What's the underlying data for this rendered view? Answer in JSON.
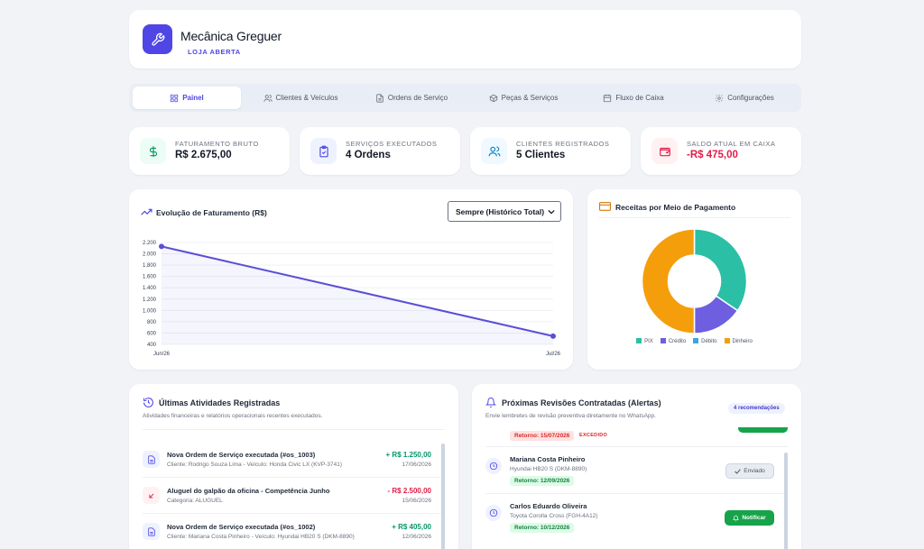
{
  "header": {
    "title": "Mecânica Greguer",
    "status": "LOJA ABERTA"
  },
  "tabs": [
    {
      "label": "Painel",
      "icon": "grid-icon"
    },
    {
      "label": "Clientes & Veículos",
      "icon": "users-icon"
    },
    {
      "label": "Ordens de Serviço",
      "icon": "document-icon"
    },
    {
      "label": "Peças & Serviços",
      "icon": "box-icon"
    },
    {
      "label": "Fluxo de Caixa",
      "icon": "calendar-icon"
    },
    {
      "label": "Configurações",
      "icon": "gear-icon"
    }
  ],
  "stats": [
    {
      "label": "FATURAMENTO BRUTO",
      "value": "R$ 2.675,00",
      "icon": "dollar-icon",
      "color": "#059669"
    },
    {
      "label": "SERVIÇOS EXECUTADOS",
      "value": "4 Ordens",
      "icon": "clipboard-check-icon",
      "color": "#4f46e5"
    },
    {
      "label": "CLIENTES REGISTRADOS",
      "value": "5 Clientes",
      "icon": "users-icon",
      "color": "#0284c7"
    },
    {
      "label": "SALDO ATUAL EM CAIXA",
      "value": "-R$ 475,00",
      "icon": "wallet-icon",
      "color": "#e11d48"
    }
  ],
  "revenue_chart": {
    "title": "Evolução de Faturamento (R$)",
    "filter": "Sempre (Histórico Total)"
  },
  "payment_chart": {
    "title": "Receitas por Meio de Pagamento"
  },
  "chart_data": [
    {
      "type": "line",
      "categories": [
        "Jun/26",
        "Jul/26"
      ],
      "series": [
        {
          "values": [
            2130,
            545
          ]
        }
      ],
      "ylim": [
        400,
        2200
      ],
      "yticks": [
        "2.200",
        "2.000",
        "1.800",
        "1.600",
        "1.400",
        "1.200",
        "1.000",
        "800",
        "600",
        "400"
      ],
      "color": "#5b4fd6",
      "grid": true
    },
    {
      "type": "pie",
      "donut": true,
      "labels": [
        "PIX",
        "Crédito",
        "Débito",
        "Dinheiro"
      ],
      "values": [
        34.5,
        15.5,
        0,
        50
      ],
      "colors": [
        "#2bbfa6",
        "#6d5fe0",
        "#38a8e0",
        "#f59e0b"
      ],
      "legend": "bottom"
    }
  ],
  "activities": {
    "title": "Últimas Atividades Registradas",
    "subtitle": "Atividades financeiras e relatórios operacionais recentes executados.",
    "items": [
      {
        "title": "Nova Ordem de Serviço executada (#os_1003)",
        "sub": "Cliente: Rodrigo Souza Lima - Veículo: Honda Civic LX (KVP-3741)",
        "amount": "+ R$ 1.250,00",
        "date": "17/06/2026",
        "kind": "income"
      },
      {
        "title": "Aluguel do galpão da oficina - Competência Junho",
        "sub": "Categoria: ALUGUEL",
        "amount": "- R$ 2.500,00",
        "date": "15/06/2026",
        "kind": "expense"
      },
      {
        "title": "Nova Ordem de Serviço executada (#os_1002)",
        "sub": "Cliente: Mariana Costa Pinheiro - Veículo: Hyundai HB20 S (DKM-8890)",
        "amount": "+ R$ 405,00",
        "date": "12/06/2026",
        "kind": "income"
      }
    ]
  },
  "revisions": {
    "title": "Próximas Revisões Contratadas (Alertas)",
    "subtitle": "Envie lembretes de revisão preventiva diretamente no WhatsApp.",
    "badge": "4 recomendações",
    "partial": {
      "return": "Retorno: 15/07/2026",
      "tag": "EXCEDIDO"
    },
    "items": [
      {
        "name": "Mariana Costa Pinheiro",
        "vehicle": "Hyundai HB20 S (DKM-8890)",
        "return": "Retorno: 12/09/2026",
        "action": "Enviado",
        "sent": true
      },
      {
        "name": "Carlos Eduardo Oliveira",
        "vehicle": "Toyota Corolla Cross (FGH-4A12)",
        "return": "Retorno: 10/12/2026",
        "action": "Notificar",
        "sent": false
      }
    ]
  }
}
